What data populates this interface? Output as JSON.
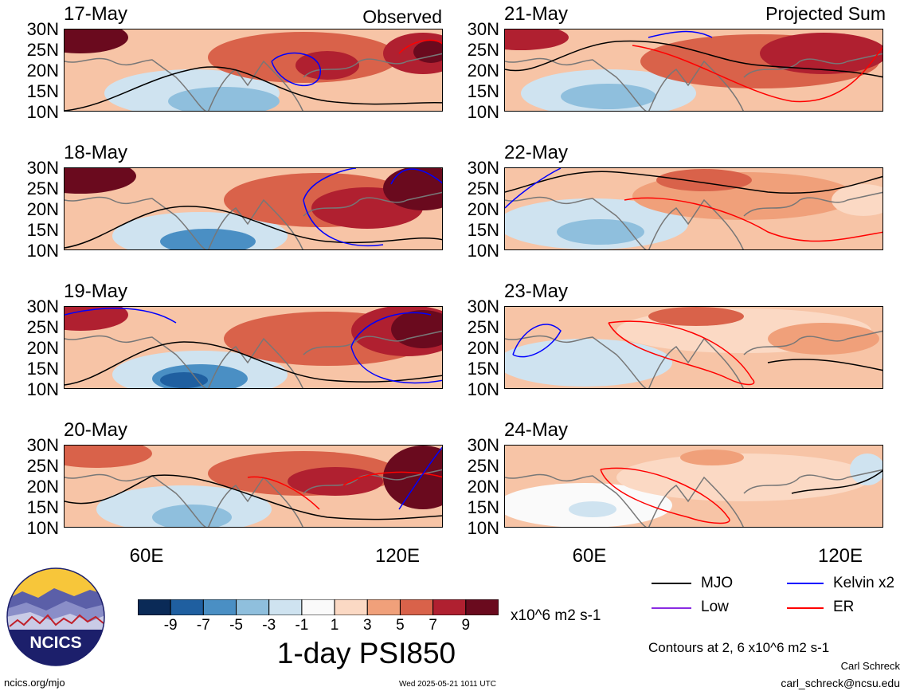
{
  "header": {
    "observed_label": "Observed",
    "projected_label": "Projected Sum"
  },
  "latitude_labels": [
    "30N",
    "25N",
    "20N",
    "15N",
    "10N"
  ],
  "longitude_labels": [
    "60E",
    "120E"
  ],
  "panels_left": [
    {
      "date": "17-May",
      "pattern": 0
    },
    {
      "date": "18-May",
      "pattern": 1
    },
    {
      "date": "19-May",
      "pattern": 2
    },
    {
      "date": "20-May",
      "pattern": 3
    }
  ],
  "panels_right": [
    {
      "date": "21-May",
      "pattern": 4
    },
    {
      "date": "22-May",
      "pattern": 5
    },
    {
      "date": "23-May",
      "pattern": 6
    },
    {
      "date": "24-May",
      "pattern": 7
    }
  ],
  "colorbar": {
    "tick_labels": [
      "-9",
      "-7",
      "-5",
      "-3",
      "-1",
      "1",
      "3",
      "5",
      "7",
      "9"
    ],
    "colors": [
      "#0a2a57",
      "#1f5fa0",
      "#4a8fc4",
      "#8fbfdd",
      "#cfe3f0",
      "#fafafa",
      "#fbd9c4",
      "#f0a07a",
      "#d9624a",
      "#b02030",
      "#6a0a1e"
    ],
    "units": "x10^6 m2 s-1"
  },
  "title": "1-day PSI850",
  "legend": [
    {
      "name": "MJO",
      "color": "#000000"
    },
    {
      "name": "Kelvin x2",
      "color": "#0000ff"
    },
    {
      "name": "Low",
      "color": "#8a2be2"
    },
    {
      "name": "ER",
      "color": "#ff0000"
    }
  ],
  "contour_note": "Contours at 2, 6 x10^6 m2 s-1",
  "author": "Carl Schreck",
  "email": "carl_schreck@ncsu.edu",
  "url": "ncics.org/mjo",
  "timestamp": "Wed 2025-05-21 1011 UTC",
  "logo_text": "NCICS"
}
